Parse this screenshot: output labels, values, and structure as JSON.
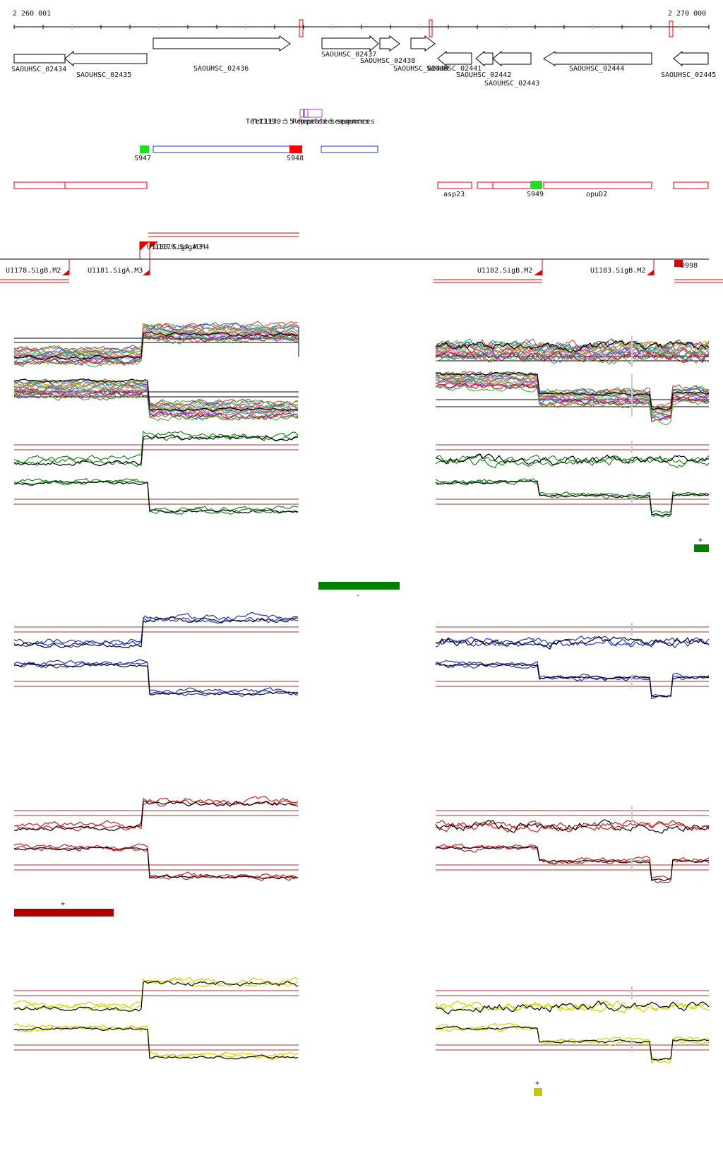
{
  "coordinates": {
    "start_label": "2 260 001",
    "end_label": "2 270 000"
  },
  "colors": {
    "red": "#e00000",
    "dark_red": "#a00000",
    "blue": "#2233cc",
    "green": "#1a8a1a",
    "bright_green": "#22dd22",
    "yellow": "#d4d400",
    "magenta": "#cc33cc",
    "black": "#000000"
  },
  "genes": [
    {
      "id": "g2434",
      "label": "SAOUHSC_02434",
      "strand": "+",
      "row": 1
    },
    {
      "id": "g2435",
      "label": "SAOUHSC_02435",
      "strand": "-",
      "row": 1
    },
    {
      "id": "g2436",
      "label": "SAOUHSC_02436",
      "strand": "+",
      "row": 0
    },
    {
      "id": "g2437",
      "label": "SAOUHSC_02437",
      "strand": "+",
      "row": 0
    },
    {
      "id": "g2438",
      "label": "SAOUHSC_02438",
      "strand": "+",
      "row": 0
    },
    {
      "id": "g2440",
      "label": "SAOUHSC_02440",
      "strand": "+",
      "row": 0
    },
    {
      "id": "g2441",
      "label": "SAOUHSC_02441",
      "strand": "-",
      "row": 1
    },
    {
      "id": "g2442",
      "label": "SAOUHSC_02442",
      "strand": "-",
      "row": 1
    },
    {
      "id": "g2443",
      "label": "SAOUHSC_02443",
      "strand": "-",
      "row": 1
    },
    {
      "id": "g2444",
      "label": "SAOUHSC_02444",
      "strand": "-",
      "row": 1
    },
    {
      "id": "g2445",
      "label": "SAOUHSC_02445",
      "strand": "-",
      "row": 1
    }
  ],
  "repeats": {
    "label1": "Tet1139: 5 Repeated sequences",
    "label2": "Tet1139: 5 Repeated sequences"
  },
  "features": [
    {
      "label": "S947",
      "color": "bright_green"
    },
    {
      "label": "S948",
      "color": "red"
    },
    {
      "label": "asp23",
      "color": "red"
    },
    {
      "label": "S949",
      "color": "bright_green"
    },
    {
      "label": "opuD2",
      "color": "red"
    }
  ],
  "promoters": [
    {
      "label": "U1178.SigB.M2"
    },
    {
      "label": "U1181.SigA.M3"
    },
    {
      "label": "U1180.SigA.M3"
    },
    {
      "label": "U1179.SigA.M4"
    },
    {
      "label": "U1182.SigB.M2"
    },
    {
      "label": "U1183.SigB.M2"
    },
    {
      "label": "D998"
    }
  ],
  "track_marks": {
    "green_plus": "+",
    "green_minus": "-",
    "red_plus": "+",
    "yellow_plus": "+"
  }
}
